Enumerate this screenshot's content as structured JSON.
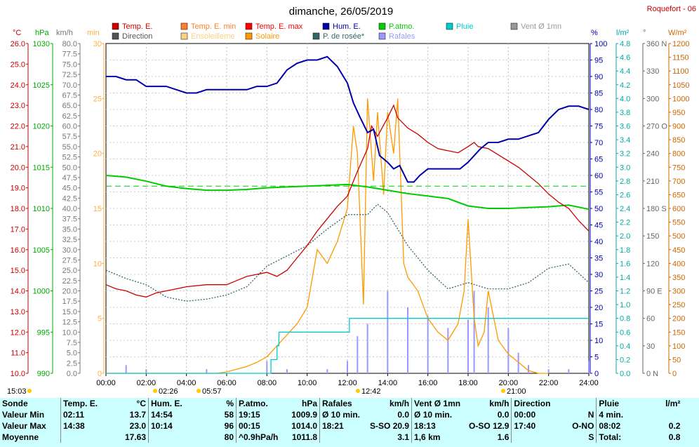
{
  "header": {
    "date": "dimanche, 26/05/2019",
    "station": "Roquefort - 06"
  },
  "legend": {
    "row1": [
      "Temp. E.",
      "Temp. E. min",
      "Temp. E. max",
      "Hum. E.",
      "P.atmo.",
      "Pluie",
      "Vent Ø 1mn"
    ],
    "row2": [
      "Direction",
      "Ensoleilleme",
      "Solaire",
      "P. de rosée*",
      "Rafales"
    ],
    "colors_row1": [
      "#cc0000",
      "#ff7f27",
      "#ff0000",
      "#0000aa",
      "#00cc00",
      "#00cccc",
      "#999999"
    ],
    "colors_row2": [
      "#555555",
      "#ffd080",
      "#ff9900",
      "#336666",
      "#9999ff"
    ]
  },
  "axes": {
    "units": {
      "temp": "°C",
      "hpa": "hPa",
      "kmh": "km/h",
      "min": "min",
      "pct": "%",
      "lm2": "l/m²",
      "deg": "°",
      "wm2": "W/m²"
    },
    "temp_ticks": [
      "26.0",
      "25.0",
      "24.0",
      "23.0",
      "22.0",
      "21.0",
      "20.0",
      "19.0",
      "18.0",
      "17.0",
      "16.0",
      "15.0",
      "14.0",
      "13.0",
      "12.0",
      "11.0",
      "10.0"
    ],
    "hpa_ticks": [
      "1030",
      "1025",
      "1020",
      "1015",
      "1010",
      "1005",
      "1000",
      "995",
      "990"
    ],
    "kmh_ticks": [
      "80.0",
      "77.5",
      "75.0",
      "72.5",
      "70.0",
      "67.5",
      "65.0",
      "62.5",
      "60.0",
      "57.5",
      "55.0",
      "52.5",
      "50.0",
      "47.5",
      "45.0",
      "42.5",
      "40.0",
      "37.5",
      "35.0",
      "32.5",
      "30.0",
      "27.5",
      "25.0",
      "22.5",
      "20.0",
      "17.5",
      "15.0",
      "12.5",
      "10.0",
      "7.5",
      "5.0",
      "2.5",
      "0.0"
    ],
    "min_ticks": [
      "30",
      "25",
      "20",
      "15",
      "10",
      "5",
      "0"
    ],
    "pct_ticks": [
      "100",
      "95",
      "90",
      "85",
      "80",
      "75",
      "70",
      "65",
      "60",
      "55",
      "50",
      "45",
      "40",
      "35",
      "30",
      "25",
      "20",
      "15",
      "10",
      "5",
      "0"
    ],
    "lm2_ticks": [
      "4.8",
      "4.6",
      "4.4",
      "4.2",
      "4.0",
      "3.8",
      "3.6",
      "3.4",
      "3.2",
      "3.0",
      "2.8",
      "2.6",
      "2.4",
      "2.2",
      "2.0",
      "1.8",
      "1.6",
      "1.4",
      "1.2",
      "1.0",
      "0.8",
      "0.6",
      "0.4",
      "0.2",
      "0.0"
    ],
    "deg_ticks": [
      "360 N",
      "330",
      "300",
      "270 O",
      "240",
      "210",
      "180 S",
      "150",
      "120",
      "90 E",
      "60",
      "30",
      "0 N"
    ],
    "wm2_ticks": [
      "1200",
      "1150",
      "1100",
      "1050",
      "1000",
      "950",
      "900",
      "850",
      "800",
      "750",
      "700",
      "650",
      "600",
      "550",
      "500",
      "450",
      "400",
      "350",
      "300",
      "250",
      "200",
      "150",
      "100",
      "50",
      "0"
    ],
    "x_ticks": [
      "00:00",
      "02:00",
      "04:00",
      "06:00",
      "08:00",
      "10:00",
      "12:00",
      "14:00",
      "16:00",
      "18:00",
      "20:00",
      "22:00",
      "24:00"
    ]
  },
  "sun_markers": {
    "moonset": "15:03",
    "moonrise": "02:26",
    "sunrise": "05:57",
    "noon": "12:42",
    "sunset": "21:00"
  },
  "chart_data": {
    "type": "line",
    "title": "dimanche, 26/05/2019",
    "x_unit": "hours",
    "xlim": [
      0,
      24
    ],
    "series": [
      {
        "name": "Temp. E.",
        "unit": "°C",
        "ylim": [
          10,
          26
        ],
        "color": "#cc0000",
        "x": [
          0,
          0.5,
          1,
          1.5,
          2,
          2.5,
          3,
          3.5,
          4,
          5,
          6,
          6.5,
          7,
          7.5,
          8,
          8.5,
          9,
          9.5,
          10,
          10.5,
          11,
          11.5,
          12,
          12.5,
          13,
          13.2,
          13.5,
          14,
          14.3,
          14.5,
          15,
          15.5,
          16,
          16.5,
          17,
          17.5,
          18,
          18.3,
          18.5,
          19,
          19.5,
          20,
          20.5,
          21,
          21.5,
          22,
          22.5,
          23,
          23.5,
          24
        ],
        "y": [
          14.3,
          14.1,
          14.0,
          13.8,
          13.7,
          13.9,
          14.0,
          14.1,
          14.2,
          14.3,
          14.3,
          14.5,
          14.7,
          14.8,
          14.9,
          14.7,
          15.0,
          15.6,
          16.2,
          16.9,
          17.5,
          18.1,
          18.6,
          19.8,
          20.9,
          22.0,
          21.5,
          22.4,
          23.0,
          22.4,
          21.9,
          21.6,
          21.2,
          20.9,
          20.8,
          20.7,
          21.0,
          21.2,
          21.0,
          20.9,
          20.6,
          20.3,
          20.0,
          19.6,
          19.2,
          18.7,
          18.3,
          18.0,
          17.4,
          16.9
        ]
      },
      {
        "name": "Hum. E.",
        "unit": "%",
        "ylim": [
          0,
          100
        ],
        "color": "#0000aa",
        "x": [
          0,
          0.5,
          1,
          1.5,
          2,
          2.5,
          3,
          3.5,
          4,
          4.5,
          5,
          5.5,
          6,
          6.5,
          7,
          7.5,
          8,
          8.5,
          9,
          9.5,
          10,
          10.5,
          11,
          11.5,
          12,
          12.3,
          12.6,
          13,
          13.3,
          13.6,
          14,
          14.3,
          14.6,
          15,
          15.3,
          15.6,
          16,
          16.3,
          16.6,
          17,
          17.3,
          17.6,
          18,
          18.3,
          18.6,
          19,
          19.5,
          20,
          20.5,
          21,
          21.5,
          22,
          22.5,
          23,
          23.5,
          24
        ],
        "y": [
          90,
          90,
          89,
          89,
          87,
          87,
          87,
          86,
          85,
          85,
          86,
          86,
          86,
          86,
          86,
          87,
          87,
          88,
          92,
          94,
          95,
          95,
          96,
          93,
          88,
          82,
          78,
          73,
          74,
          66,
          64,
          62,
          63,
          58,
          58,
          60,
          62,
          62,
          62,
          62,
          62,
          62,
          64,
          66,
          68,
          70,
          70,
          71,
          71,
          72,
          73,
          77,
          80,
          81,
          81,
          80
        ]
      },
      {
        "name": "P.atmo.",
        "unit": "hPa",
        "ylim": [
          990,
          1030
        ],
        "color": "#00cc00",
        "x": [
          0,
          1,
          2,
          3,
          4,
          5,
          6,
          7,
          8,
          9,
          10,
          11,
          12,
          13,
          14,
          15,
          16,
          17,
          18,
          19,
          20,
          21,
          22,
          23,
          24
        ],
        "y": [
          1014.0,
          1013.8,
          1013.3,
          1012.7,
          1012.4,
          1012.2,
          1012.2,
          1012.3,
          1012.5,
          1012.6,
          1012.7,
          1012.8,
          1012.9,
          1012.6,
          1012.2,
          1011.8,
          1011.5,
          1011.2,
          1010.3,
          1010.0,
          1010.0,
          1010.1,
          1010.2,
          1010.4,
          1009.9
        ]
      },
      {
        "name": "P. de rosée*",
        "unit": "°C",
        "ylim": [
          10,
          26
        ],
        "color": "#336666",
        "x": [
          0,
          1,
          2,
          3,
          4,
          5,
          6,
          7,
          8,
          9,
          10,
          11,
          12,
          13,
          13.5,
          14,
          15,
          16,
          17,
          18,
          19,
          20,
          21,
          22,
          23,
          24
        ],
        "y": [
          15.0,
          14.6,
          14.3,
          13.7,
          13.5,
          13.6,
          13.8,
          14.2,
          15.2,
          15.7,
          16.2,
          17.0,
          17.7,
          17.7,
          18.2,
          17.8,
          16.2,
          15.0,
          14.1,
          14.4,
          14.1,
          14.1,
          14.4,
          15.1,
          15.3,
          14.4
        ]
      },
      {
        "name": "Solaire",
        "unit": "W/m²",
        "ylim": [
          0,
          1200
        ],
        "color": "#ff9900",
        "x": [
          0,
          5.5,
          6,
          6.5,
          7,
          7.5,
          8,
          8.5,
          9,
          9.5,
          10,
          10.5,
          11,
          11.5,
          12,
          12.3,
          12.5,
          12.8,
          13,
          13.3,
          13.5,
          13.8,
          14,
          14.3,
          14.5,
          14.8,
          15,
          15.5,
          16,
          16.5,
          17,
          17.5,
          17.8,
          18,
          18.3,
          18.5,
          18.8,
          19,
          19.5,
          20,
          20.5,
          21,
          21.5,
          22
        ],
        "y": [
          0,
          0,
          5,
          15,
          25,
          40,
          60,
          100,
          140,
          180,
          240,
          450,
          400,
          480,
          600,
          900,
          800,
          250,
          1000,
          700,
          950,
          650,
          950,
          800,
          1000,
          400,
          350,
          300,
          200,
          150,
          120,
          180,
          300,
          560,
          200,
          100,
          150,
          300,
          120,
          70,
          40,
          10,
          0,
          0
        ]
      },
      {
        "name": "Rafales",
        "unit": "km/h",
        "ylim": [
          0,
          80
        ],
        "color": "#9999ff",
        "x": [
          0,
          1,
          2,
          3,
          4,
          5,
          6,
          7,
          8,
          9,
          10,
          11,
          12,
          12.5,
          13,
          14,
          15,
          16,
          17,
          18,
          18.3,
          19,
          20,
          20.5,
          21,
          22,
          23,
          24
        ],
        "y": [
          0,
          2,
          1,
          0,
          0,
          1,
          0,
          0,
          3,
          1,
          0,
          1,
          3,
          9,
          12,
          20,
          16,
          14,
          11,
          13,
          20,
          16,
          11,
          5,
          2,
          1,
          1,
          3
        ]
      },
      {
        "name": "Pluie",
        "unit": "l/m²",
        "ylim": [
          0,
          4.8
        ],
        "color": "#00cccc",
        "x": [
          0,
          8,
          8.2,
          8.5,
          8.6,
          12,
          12.1,
          24
        ],
        "y": [
          0,
          0,
          0.2,
          0.4,
          0.6,
          0.6,
          0.8,
          0.8
        ]
      }
    ]
  },
  "summary": {
    "row_labels": [
      "Sonde",
      "Valeur Min",
      "Valeur Max",
      "Moyenne"
    ],
    "temp": {
      "header": "Temp. E.",
      "unit": "°C",
      "min_time": "02:11",
      "min": "13.7",
      "max_time": "14:38",
      "max": "23.0",
      "avg": "17.63"
    },
    "hum": {
      "header": "Hum. E.",
      "unit": "%",
      "min_time": "14:54",
      "min": "58",
      "max_time": "10:14",
      "max": "96",
      "avg": "80"
    },
    "patmo": {
      "header": "P.atmo.",
      "unit": "hPa",
      "min_time": "19:15",
      "min": "1009.9",
      "max_time": "00:15",
      "max": "1014.0",
      "avg_label": "^0.9hPa/h",
      "avg": "1011.8"
    },
    "rafales": {
      "header": "Rafales",
      "unit": "km/h",
      "min_label": "Ø 10 min.",
      "min": "0.0",
      "max_time": "18:21",
      "max_dir": "S-SO",
      "max": "20.9",
      "avg": "3.1"
    },
    "vent": {
      "header": "Vent Ø 1mn",
      "unit": "km/h",
      "min_label": "Ø 10 min.",
      "min": "0.0",
      "max_time": "18:13",
      "max_dir": "O-SO",
      "max": "12.9",
      "avg_label": "1,6 km",
      "avg": "1.6"
    },
    "direction": {
      "header": "Direction",
      "min_time": "00:00",
      "min": "N",
      "max_time": "17:40",
      "max": "O-NO",
      "avg": "S"
    },
    "pluie": {
      "header": "Pluie",
      "unit": "l/m²",
      "min_label": "4 min.",
      "max_time": "08:02",
      "max": "0.2",
      "avg_label": "Total:",
      "avg": "0.8"
    }
  }
}
